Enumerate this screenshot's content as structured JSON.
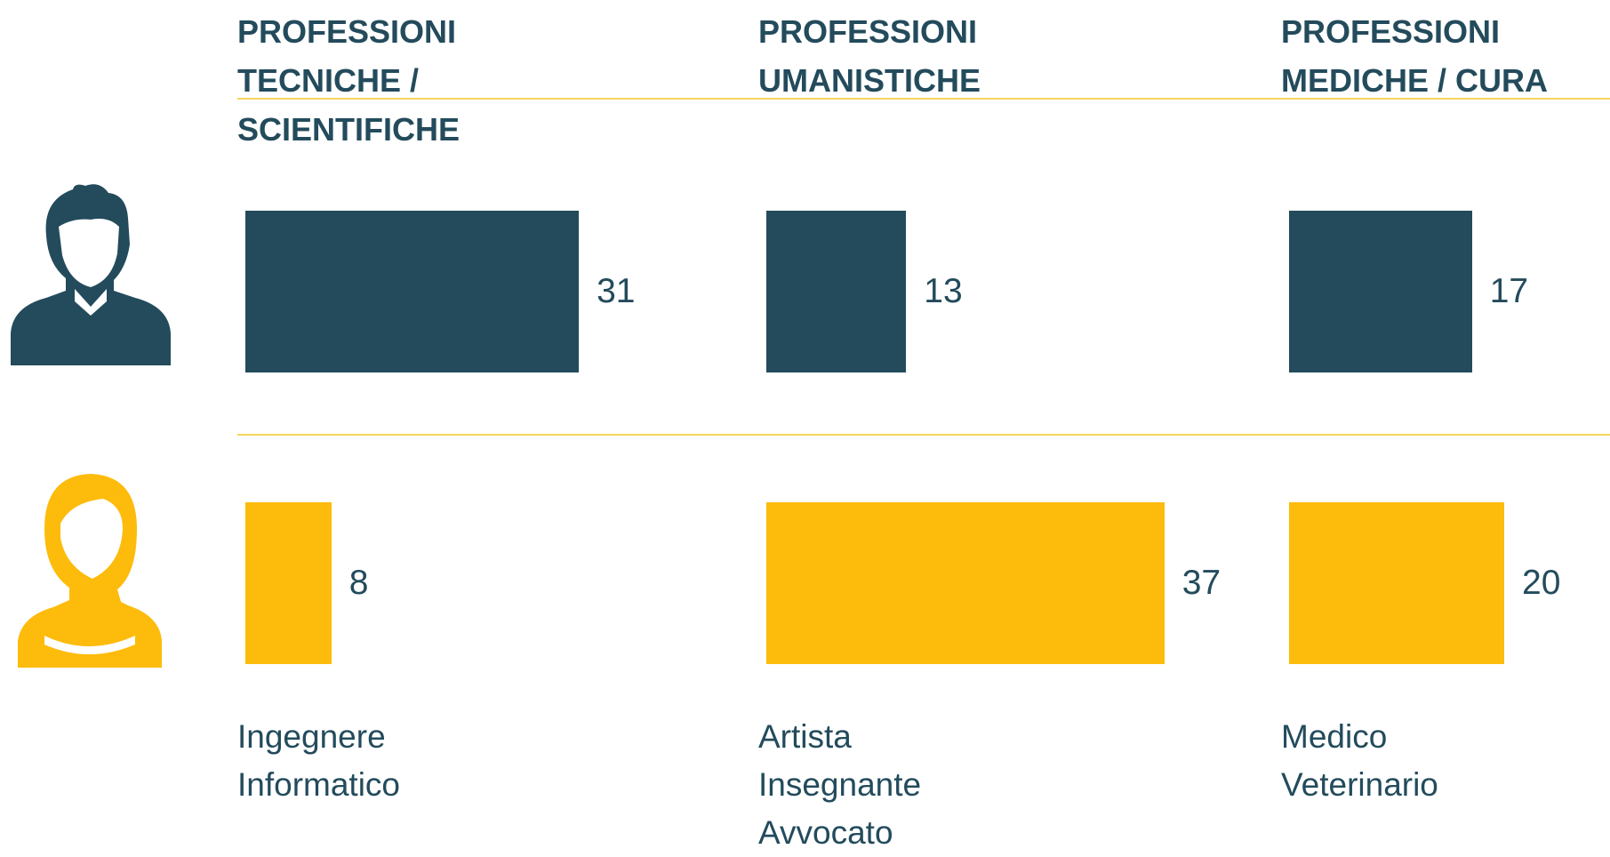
{
  "chart_data": {
    "type": "bar",
    "categories": [
      "PROFESSIONI TECNICHE / SCIENTIFICHE",
      "PROFESSIONI UMANISTICHE",
      "PROFESSIONI MEDICHE / CURA"
    ],
    "series": [
      {
        "color": "#234b5c",
        "values": [
          31,
          13,
          17
        ]
      },
      {
        "color": "#fdbb0b",
        "values": [
          8,
          37,
          20
        ]
      }
    ],
    "examples": [
      [
        "Ingegnere",
        "Informatico"
      ],
      [
        "Artista",
        "Insegnante",
        "Avvocato"
      ],
      [
        "Medico",
        "Veterinario"
      ]
    ]
  }
}
